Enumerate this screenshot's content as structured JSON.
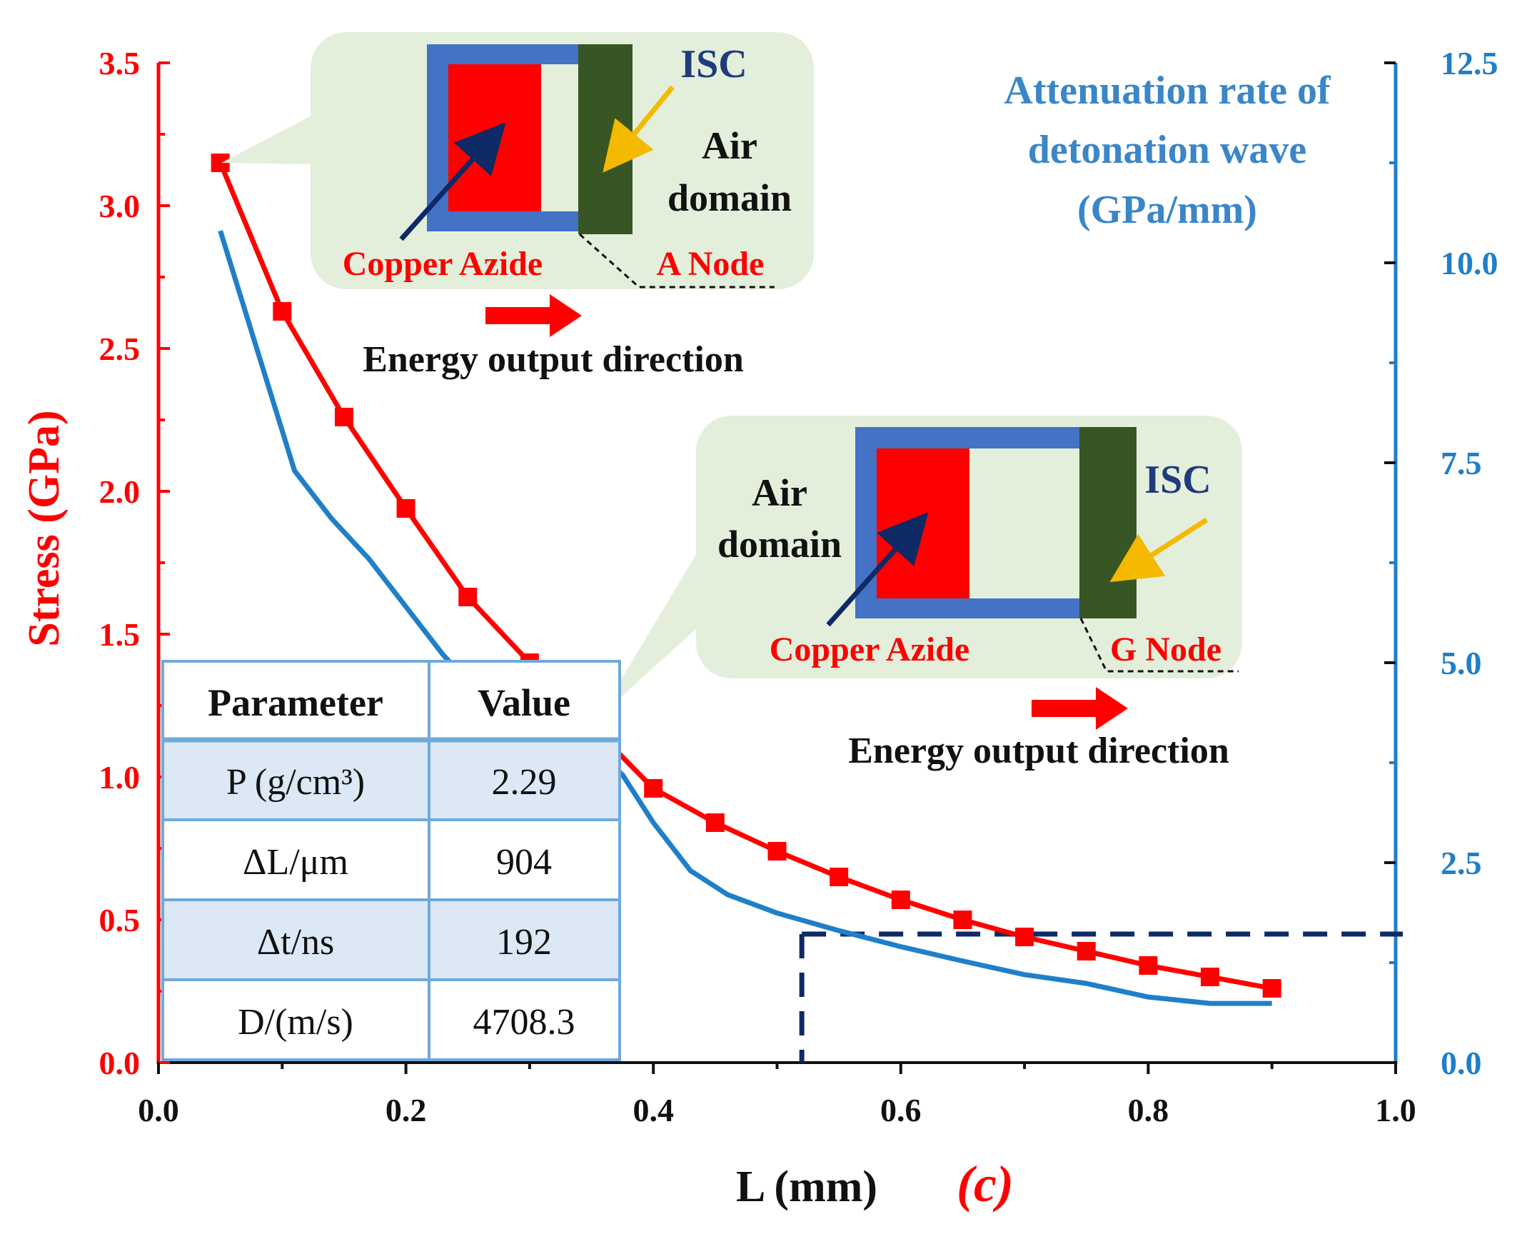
{
  "chart_data": {
    "type": "line",
    "panel_label": "(c)",
    "xlabel": "L (mm)",
    "ylabel_left": "Stress (GPa)",
    "ylabel_right_lines": [
      "Attenuation rate of",
      "detonation wave",
      "(GPa/mm)"
    ],
    "xlim": [
      0.0,
      1.0
    ],
    "ylim_left": [
      0.0,
      3.5
    ],
    "ylim_right": [
      0.0,
      12.5
    ],
    "x_ticks": [
      "0.0",
      "0.2",
      "0.4",
      "0.6",
      "0.8",
      "1.0"
    ],
    "y_left_ticks": [
      "0.0",
      "0.5",
      "1.0",
      "1.5",
      "2.0",
      "2.5",
      "3.0",
      "3.5"
    ],
    "y_right_ticks": [
      "0.0",
      "2.5",
      "5.0",
      "7.5",
      "10.0",
      "12.5"
    ],
    "colors": {
      "stress": "#ff0000",
      "attenuation": "#1f7fc9",
      "dashed": "#0d2a66"
    },
    "series": [
      {
        "axis": "left",
        "marker": "square",
        "x": [
          0.05,
          0.1,
          0.15,
          0.2,
          0.25,
          0.3,
          0.35,
          0.4,
          0.45,
          0.5,
          0.55,
          0.6,
          0.65,
          0.7,
          0.75,
          0.8,
          0.85,
          0.9
        ],
        "values": [
          3.15,
          2.63,
          2.26,
          1.94,
          1.63,
          1.4,
          1.18,
          0.96,
          0.84,
          0.74,
          0.65,
          0.57,
          0.5,
          0.44,
          0.39,
          0.34,
          0.3,
          0.26
        ]
      },
      {
        "axis": "right",
        "marker": "none",
        "x": [
          0.05,
          0.08,
          0.11,
          0.14,
          0.17,
          0.2,
          0.23,
          0.26,
          0.29,
          0.32,
          0.35,
          0.375,
          0.4,
          0.43,
          0.46,
          0.5,
          0.55,
          0.6,
          0.65,
          0.7,
          0.75,
          0.8,
          0.85,
          0.9
        ],
        "values": [
          10.4,
          8.9,
          7.4,
          6.8,
          6.3,
          5.7,
          5.1,
          4.6,
          4.3,
          4.15,
          3.95,
          3.6,
          3.0,
          2.4,
          2.1,
          1.87,
          1.65,
          1.45,
          1.27,
          1.1,
          0.99,
          0.82,
          0.74,
          0.74
        ]
      }
    ],
    "reference_lines": {
      "x": 0.52,
      "y_left": 0.45
    }
  },
  "table": {
    "headers": [
      "Parameter",
      "Value"
    ],
    "rows": [
      {
        "param": "P (g/cm³)",
        "value": "2.29"
      },
      {
        "param": "ΔL/μm",
        "value": "904"
      },
      {
        "param": "Δt/ns",
        "value": "192"
      },
      {
        "param": "D/(m/s)",
        "value": "4708.3"
      }
    ]
  },
  "inset_top": {
    "isc": "ISC",
    "air_line1": "Air",
    "air_line2": "domain",
    "copper": "Copper Azide",
    "node": "A Node",
    "direction": "Energy output direction"
  },
  "inset_bottom": {
    "isc": "ISC",
    "air_line1": "Air",
    "air_line2": "domain",
    "copper": "Copper Azide",
    "node": "G Node",
    "direction": "Energy output direction"
  }
}
